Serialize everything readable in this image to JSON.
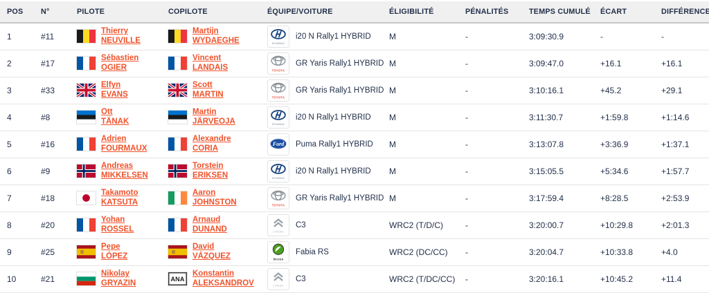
{
  "header": {
    "columns": [
      {
        "key": "pos",
        "label": "POS"
      },
      {
        "key": "num",
        "label": "N°"
      },
      {
        "key": "pilot",
        "label": "PILOTE"
      },
      {
        "key": "copilot",
        "label": "COPILOTE"
      },
      {
        "key": "team",
        "label": "ÉQUIPE/VOITURE"
      },
      {
        "key": "eligibility",
        "label": "ÉLIGIBILITÉ"
      },
      {
        "key": "penalties",
        "label": "PÉNALITÉS"
      },
      {
        "key": "time",
        "label": "TEMPS CUMULÉ"
      },
      {
        "key": "gap",
        "label": "ÉCART"
      },
      {
        "key": "diff",
        "label": "DIFFÉRENCE"
      }
    ]
  },
  "icons": {
    "ana_label": "ANA",
    "flags": [
      "belgium",
      "france",
      "great-britain",
      "estonia",
      "norway",
      "japan",
      "ireland",
      "spain",
      "bulgaria",
      "ana"
    ],
    "manufacturers": [
      "hyundai",
      "toyota",
      "ford",
      "citroen",
      "skoda"
    ]
  },
  "colors": {
    "text_navy": "#222f49",
    "link_orange": "#f0532c",
    "header_bg": "#f0f0f0",
    "row_border": "#e4e4e4",
    "toyota_red": "#e8432d",
    "hyundai_blue": "#14407c",
    "ford_blue": "#1b4ea3",
    "skoda_green": "#4c9f1f",
    "citroen_gray": "#98a1a8"
  },
  "rows": [
    {
      "pos": "1",
      "num": "#11",
      "pilot_first": "Thierry",
      "pilot_last": "NEUVILLE",
      "pilot_flag": "be",
      "copilot_first": "Martijn",
      "copilot_last": "WYDAEGHE",
      "copilot_flag": "be",
      "manufacturer": "hyundai",
      "car": "i20 N Rally1 HYBRID",
      "eligibility": "M",
      "penalties": "-",
      "time": "3:09:30.9",
      "gap": "-",
      "diff": "-"
    },
    {
      "pos": "2",
      "num": "#17",
      "pilot_first": "Sébastien",
      "pilot_last": "OGIER",
      "pilot_flag": "fr",
      "copilot_first": "Vincent",
      "copilot_last": "LANDAIS",
      "copilot_flag": "fr",
      "manufacturer": "toyota",
      "car": "GR Yaris Rally1 HYBRID",
      "eligibility": "M",
      "penalties": "-",
      "time": "3:09:47.0",
      "gap": "+16.1",
      "diff": "+16.1"
    },
    {
      "pos": "3",
      "num": "#33",
      "pilot_first": "Elfyn",
      "pilot_last": "EVANS",
      "pilot_flag": "gb",
      "copilot_first": "Scott",
      "copilot_last": "MARTIN",
      "copilot_flag": "gb",
      "manufacturer": "toyota",
      "car": "GR Yaris Rally1 HYBRID",
      "eligibility": "M",
      "penalties": "-",
      "time": "3:10:16.1",
      "gap": "+45.2",
      "diff": "+29.1"
    },
    {
      "pos": "4",
      "num": "#8",
      "pilot_first": "Ott",
      "pilot_last": "TÄNAK",
      "pilot_flag": "ee",
      "copilot_first": "Martin",
      "copilot_last": "JÄRVEOJA",
      "copilot_flag": "ee",
      "manufacturer": "hyundai",
      "car": "i20 N Rally1 HYBRID",
      "eligibility": "M",
      "penalties": "-",
      "time": "3:11:30.7",
      "gap": "+1:59.8",
      "diff": "+1:14.6"
    },
    {
      "pos": "5",
      "num": "#16",
      "pilot_first": "Adrien",
      "pilot_last": "FOURMAUX",
      "pilot_flag": "fr",
      "copilot_first": "Alexandre",
      "copilot_last": "CORIA",
      "copilot_flag": "fr",
      "manufacturer": "ford",
      "car": "Puma Rally1 HYBRID",
      "eligibility": "M",
      "penalties": "-",
      "time": "3:13:07.8",
      "gap": "+3:36.9",
      "diff": "+1:37.1"
    },
    {
      "pos": "6",
      "num": "#9",
      "pilot_first": "Andreas",
      "pilot_last": "MIKKELSEN",
      "pilot_flag": "no",
      "copilot_first": "Torstein",
      "copilot_last": "ERIKSEN",
      "copilot_flag": "no",
      "manufacturer": "hyundai",
      "car": "i20 N Rally1 HYBRID",
      "eligibility": "M",
      "penalties": "-",
      "time": "3:15:05.5",
      "gap": "+5:34.6",
      "diff": "+1:57.7"
    },
    {
      "pos": "7",
      "num": "#18",
      "pilot_first": "Takamoto",
      "pilot_last": "KATSUTA",
      "pilot_flag": "jp",
      "copilot_first": "Aaron",
      "copilot_last": "JOHNSTON",
      "copilot_flag": "ie",
      "manufacturer": "toyota",
      "car": "GR Yaris Rally1 HYBRID",
      "eligibility": "M",
      "penalties": "-",
      "time": "3:17:59.4",
      "gap": "+8:28.5",
      "diff": "+2:53.9"
    },
    {
      "pos": "8",
      "num": "#20",
      "pilot_first": "Yohan",
      "pilot_last": "ROSSEL",
      "pilot_flag": "fr",
      "copilot_first": "Arnaud",
      "copilot_last": "DUNAND",
      "copilot_flag": "fr",
      "manufacturer": "citroen",
      "car": "C3",
      "eligibility": "WRC2 (T/D/C)",
      "penalties": "-",
      "time": "3:20:00.7",
      "gap": "+10:29.8",
      "diff": "+2:01.3"
    },
    {
      "pos": "9",
      "num": "#25",
      "pilot_first": "Pepe",
      "pilot_last": "LÓPEZ",
      "pilot_flag": "es",
      "copilot_first": "David",
      "copilot_last": "VÁZQUEZ",
      "copilot_flag": "es",
      "manufacturer": "skoda",
      "car": "Fabia RS",
      "eligibility": "WRC2 (DC/CC)",
      "penalties": "-",
      "time": "3:20:04.7",
      "gap": "+10:33.8",
      "diff": "+4.0"
    },
    {
      "pos": "10",
      "num": "#21",
      "pilot_first": "Nikolay",
      "pilot_last": "GRYAZIN",
      "pilot_flag": "bg",
      "copilot_first": "Konstantin",
      "copilot_last": "ALEKSANDROV",
      "copilot_flag": "ana",
      "manufacturer": "citroen",
      "car": "C3",
      "eligibility": "WRC2 (T/DC/CC)",
      "penalties": "-",
      "time": "3:20:16.1",
      "gap": "+10:45.2",
      "diff": "+11.4"
    }
  ]
}
